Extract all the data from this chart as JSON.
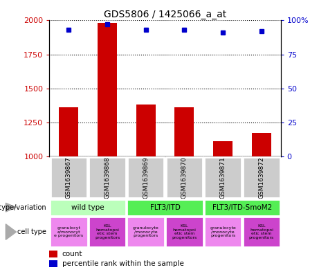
{
  "title": "GDS5806 / 1425066_a_at",
  "samples": [
    "GSM1639867",
    "GSM1639868",
    "GSM1639869",
    "GSM1639870",
    "GSM1639871",
    "GSM1639872"
  ],
  "counts": [
    1360,
    1980,
    1380,
    1360,
    1110,
    1175
  ],
  "percentiles": [
    93,
    97,
    93,
    93,
    91,
    92
  ],
  "ylim_left": [
    1000,
    2000
  ],
  "ylim_right": [
    0,
    100
  ],
  "yticks_left": [
    1000,
    1250,
    1500,
    1750,
    2000
  ],
  "ytick_labels_left": [
    "1000",
    "1250",
    "1500",
    "1750",
    "2000"
  ],
  "yticks_right": [
    0,
    25,
    50,
    75,
    100
  ],
  "ytick_labels_right": [
    "0",
    "25",
    "50",
    "75",
    "100%"
  ],
  "bar_color": "#cc0000",
  "dot_color": "#0000cc",
  "genotype_groups": [
    {
      "label": "wild type",
      "start": 0,
      "end": 2,
      "color": "#bbffbb"
    },
    {
      "label": "FLT3/ITD",
      "start": 2,
      "end": 4,
      "color": "#55ee55"
    },
    {
      "label": "FLT3/ITD-SmoM2",
      "start": 4,
      "end": 6,
      "color": "#55ee55"
    }
  ],
  "cell_types": [
    {
      "label": "granulocyt\ne/monocyt\ne progenitors",
      "start": 0,
      "end": 1,
      "color": "#ee88ee"
    },
    {
      "label": "KSL\nhematopoi\netic stem\nprogenitors",
      "start": 1,
      "end": 2,
      "color": "#cc44cc"
    },
    {
      "label": "granulocyte\n/monocyte\nprogenitors",
      "start": 2,
      "end": 3,
      "color": "#ee88ee"
    },
    {
      "label": "KSL\nhematopoi\netic stem\nprogenitors",
      "start": 3,
      "end": 4,
      "color": "#cc44cc"
    },
    {
      "label": "granulocyte\n/monocyte\nprogenitors",
      "start": 4,
      "end": 5,
      "color": "#ee88ee"
    },
    {
      "label": "KSL\nhematopoi\netic stem\nprogenitors",
      "start": 5,
      "end": 6,
      "color": "#cc44cc"
    }
  ],
  "left_label_color": "#cc0000",
  "right_label_color": "#0000cc",
  "sample_bg_color": "#cccccc",
  "bar_width": 0.5,
  "fig_width": 4.61,
  "fig_height": 3.93,
  "dpi": 100
}
